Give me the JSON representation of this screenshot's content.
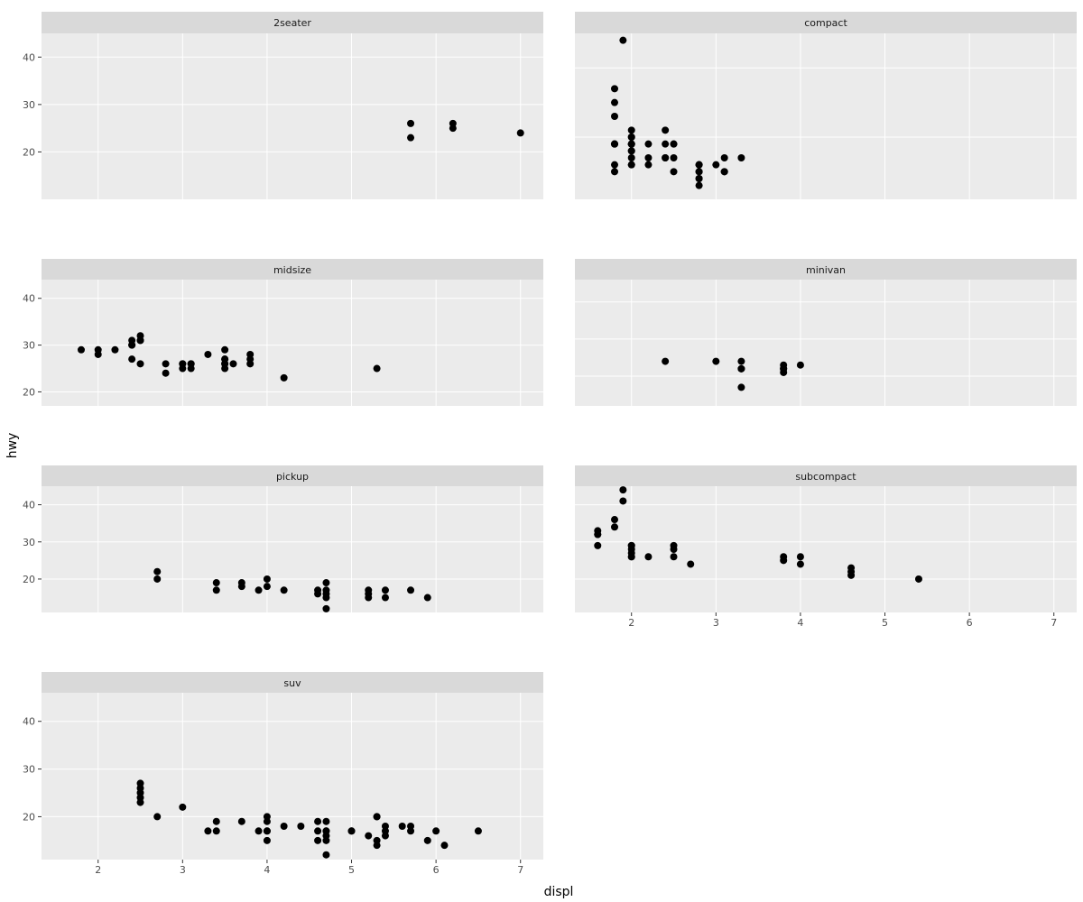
{
  "chart_data": {
    "type": "scatter",
    "facet_layout": "wrap",
    "xlabel": "displ",
    "ylabel": "hwy",
    "xlim": [
      1.33,
      7.27
    ],
    "x_ticks": [
      2,
      3,
      4,
      5,
      6,
      7
    ],
    "grid": true,
    "point_color": "#000000",
    "panel_background": "#ebebeb",
    "strip_background": "#d9d9d9",
    "panels": [
      {
        "name": "2seater",
        "ylim": [
          10,
          45
        ],
        "y_ticks": [
          20,
          30,
          40
        ],
        "points": [
          [
            5.7,
            26
          ],
          [
            5.7,
            23
          ],
          [
            6.2,
            26
          ],
          [
            6.2,
            25
          ],
          [
            7.0,
            24
          ]
        ]
      },
      {
        "name": "compact",
        "ylim": [
          21,
          45
        ],
        "y_ticks": [
          20,
          30,
          40
        ],
        "points": [
          [
            1.8,
            29
          ],
          [
            1.8,
            29
          ],
          [
            2.0,
            31
          ],
          [
            2.0,
            30
          ],
          [
            2.8,
            26
          ],
          [
            2.8,
            26
          ],
          [
            3.1,
            27
          ],
          [
            1.8,
            26
          ],
          [
            1.8,
            25
          ],
          [
            2.0,
            28
          ],
          [
            2.0,
            27
          ],
          [
            2.8,
            25
          ],
          [
            2.8,
            25
          ],
          [
            3.1,
            25
          ],
          [
            3.1,
            25
          ],
          [
            2.2,
            26
          ],
          [
            2.2,
            27
          ],
          [
            2.4,
            29
          ],
          [
            2.4,
            27
          ],
          [
            3.0,
            26
          ],
          [
            3.3,
            27
          ],
          [
            1.9,
            44
          ],
          [
            2.0,
            29
          ],
          [
            2.0,
            26
          ],
          [
            2.0,
            29
          ],
          [
            2.0,
            29
          ],
          [
            2.5,
            29
          ],
          [
            2.5,
            29
          ],
          [
            2.8,
            23
          ],
          [
            2.8,
            24
          ],
          [
            1.8,
            29
          ],
          [
            1.8,
            29
          ],
          [
            2.0,
            29
          ],
          [
            2.0,
            29
          ],
          [
            2.8,
            24
          ],
          [
            2.8,
            26
          ],
          [
            1.8,
            37
          ],
          [
            1.8,
            35
          ],
          [
            1.8,
            33
          ],
          [
            2.0,
            28
          ],
          [
            2.0,
            26
          ],
          [
            2.4,
            31
          ],
          [
            2.4,
            27
          ],
          [
            2.5,
            25
          ],
          [
            2.5,
            27
          ],
          [
            2.2,
            29
          ],
          [
            2.0,
            30
          ]
        ]
      },
      {
        "name": "midsize",
        "ylim": [
          17,
          44
        ],
        "y_ticks": [
          20,
          30,
          40
        ],
        "points": [
          [
            1.8,
            29
          ],
          [
            2.0,
            28
          ],
          [
            2.0,
            29
          ],
          [
            2.8,
            26
          ],
          [
            2.4,
            27
          ],
          [
            2.4,
            30
          ],
          [
            2.5,
            26
          ],
          [
            2.5,
            31
          ],
          [
            3.1,
            26
          ],
          [
            3.1,
            25
          ],
          [
            3.8,
            26
          ],
          [
            3.8,
            27
          ],
          [
            3.8,
            28
          ],
          [
            3.5,
            26
          ],
          [
            3.0,
            26
          ],
          [
            3.0,
            25
          ],
          [
            3.5,
            27
          ],
          [
            3.5,
            26
          ],
          [
            3.3,
            28
          ],
          [
            3.6,
            26
          ],
          [
            4.2,
            23
          ],
          [
            5.3,
            25
          ],
          [
            2.2,
            29
          ],
          [
            2.5,
            32
          ],
          [
            2.5,
            31
          ],
          [
            2.4,
            31
          ],
          [
            2.4,
            30
          ],
          [
            3.1,
            26
          ],
          [
            3.5,
            29
          ],
          [
            3.5,
            27
          ],
          [
            2.8,
            24
          ],
          [
            3.0,
            26
          ],
          [
            3.5,
            25
          ]
        ]
      },
      {
        "name": "minivan",
        "ylim": [
          12,
          46
        ],
        "y_ticks": [
          20,
          30,
          40
        ],
        "points": [
          [
            2.4,
            24
          ],
          [
            3.0,
            24
          ],
          [
            3.3,
            22
          ],
          [
            3.3,
            24
          ],
          [
            3.3,
            17
          ],
          [
            3.8,
            22
          ],
          [
            3.8,
            21
          ],
          [
            3.8,
            23
          ],
          [
            4.0,
            23
          ],
          [
            3.8,
            22
          ],
          [
            3.3,
            22
          ]
        ]
      },
      {
        "name": "pickup",
        "ylim": [
          11,
          45
        ],
        "y_ticks": [
          20,
          30,
          40
        ],
        "points": [
          [
            2.7,
            20
          ],
          [
            2.7,
            22
          ],
          [
            3.4,
            17
          ],
          [
            3.4,
            19
          ],
          [
            4.0,
            18
          ],
          [
            4.0,
            20
          ],
          [
            3.7,
            19
          ],
          [
            3.7,
            18
          ],
          [
            3.9,
            17
          ],
          [
            4.7,
            12
          ],
          [
            4.7,
            17
          ],
          [
            4.7,
            16
          ],
          [
            4.7,
            19
          ],
          [
            5.2,
            17
          ],
          [
            5.2,
            16
          ],
          [
            5.2,
            15
          ],
          [
            5.7,
            17
          ],
          [
            5.9,
            15
          ],
          [
            4.2,
            17
          ],
          [
            4.6,
            17
          ],
          [
            4.6,
            16
          ],
          [
            5.4,
            17
          ],
          [
            5.4,
            15
          ],
          [
            4.7,
            15
          ]
        ]
      },
      {
        "name": "subcompact",
        "ylim": [
          11,
          45
        ],
        "y_ticks": [
          20,
          30,
          40
        ],
        "points": [
          [
            3.8,
            26
          ],
          [
            3.8,
            25
          ],
          [
            4.0,
            26
          ],
          [
            4.0,
            24
          ],
          [
            4.6,
            21
          ],
          [
            4.6,
            22
          ],
          [
            4.6,
            23
          ],
          [
            5.4,
            20
          ],
          [
            1.6,
            33
          ],
          [
            1.6,
            32
          ],
          [
            1.6,
            32
          ],
          [
            1.6,
            29
          ],
          [
            1.8,
            34
          ],
          [
            1.8,
            36
          ],
          [
            2.0,
            29
          ],
          [
            2.0,
            27
          ],
          [
            2.0,
            26
          ],
          [
            2.0,
            28
          ],
          [
            2.0,
            26
          ],
          [
            2.5,
            26
          ],
          [
            2.5,
            28
          ],
          [
            2.5,
            29
          ],
          [
            2.2,
            26
          ],
          [
            2.7,
            24
          ],
          [
            1.9,
            44
          ],
          [
            1.9,
            41
          ],
          [
            2.0,
            29
          ]
        ]
      },
      {
        "name": "suv",
        "ylim": [
          11,
          46
        ],
        "y_ticks": [
          20,
          30,
          40
        ],
        "points": [
          [
            5.3,
            20
          ],
          [
            5.3,
            15
          ],
          [
            5.3,
            20
          ],
          [
            5.7,
            17
          ],
          [
            6.5,
            17
          ],
          [
            3.7,
            19
          ],
          [
            3.9,
            17
          ],
          [
            4.7,
            12
          ],
          [
            4.7,
            17
          ],
          [
            5.2,
            16
          ],
          [
            5.7,
            18
          ],
          [
            5.9,
            15
          ],
          [
            4.7,
            15
          ],
          [
            4.0,
            17
          ],
          [
            4.0,
            19
          ],
          [
            4.6,
            15
          ],
          [
            4.6,
            17
          ],
          [
            5.0,
            17
          ],
          [
            5.4,
            16
          ],
          [
            5.4,
            18
          ],
          [
            4.2,
            18
          ],
          [
            4.4,
            18
          ],
          [
            4.7,
            19
          ],
          [
            5.3,
            14
          ],
          [
            5.4,
            17
          ],
          [
            5.6,
            18
          ],
          [
            6.1,
            14
          ],
          [
            4.0,
            20
          ],
          [
            4.0,
            15
          ],
          [
            4.6,
            19
          ],
          [
            3.3,
            17
          ],
          [
            3.4,
            17
          ],
          [
            3.4,
            19
          ],
          [
            4.7,
            17
          ],
          [
            4.7,
            16
          ],
          [
            5.0,
            17
          ],
          [
            6.0,
            17
          ],
          [
            2.7,
            20
          ],
          [
            3.0,
            22
          ],
          [
            4.0,
            17
          ],
          [
            2.5,
            23
          ],
          [
            2.5,
            25
          ],
          [
            2.5,
            26
          ],
          [
            2.5,
            27
          ],
          [
            2.5,
            24
          ]
        ]
      }
    ]
  }
}
